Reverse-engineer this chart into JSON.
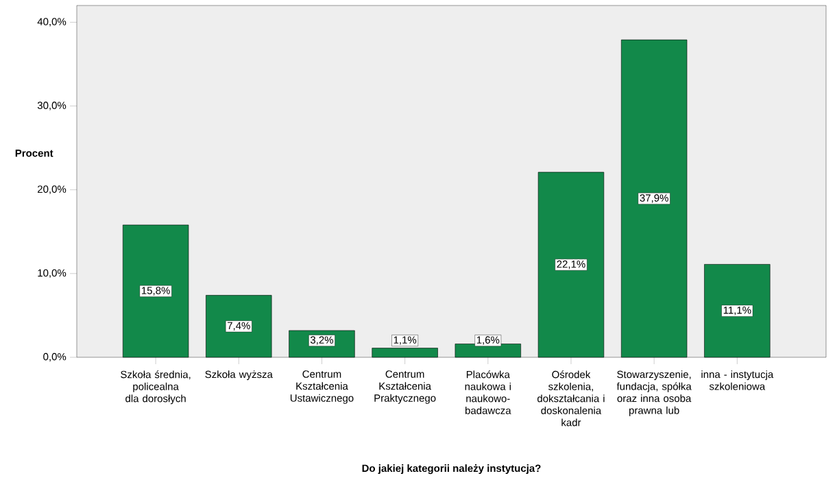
{
  "chart_data": {
    "type": "bar",
    "xlabel": "Do jakiej kategorii należy instytucja?",
    "ylabel": "Procent",
    "categories": [
      "Szkoła średnia, policealna dla dorosłych",
      "Szkoła wyższa",
      "Centrum Kształcenia Ustawicznego",
      "Centrum Kształcenia Praktycznego",
      "Placówka naukowa i naukowo-badawcza",
      "Ośrodek szkolenia, dokształcania i doskonalenia kadr",
      "Stowarzyszenie, fundacja, spółka oraz inna osoba prawna lub",
      "inna - instytucja szkoleniowa"
    ],
    "values": [
      15.8,
      7.4,
      3.2,
      1.1,
      1.6,
      22.1,
      37.9,
      11.1
    ],
    "value_labels": [
      "15,8%",
      "7,4%",
      "3,2%",
      "1,1%",
      "1,6%",
      "22,1%",
      "37,9%",
      "11,1%"
    ],
    "color": "#12894a",
    "ylim": [
      0,
      42
    ],
    "yticks": [
      {
        "value": 0,
        "label": "0,0%"
      },
      {
        "value": 10,
        "label": "10,0%"
      },
      {
        "value": 20,
        "label": "20,0%"
      },
      {
        "value": 30,
        "label": "30,0%"
      },
      {
        "value": 40,
        "label": "40,0%"
      }
    ]
  }
}
